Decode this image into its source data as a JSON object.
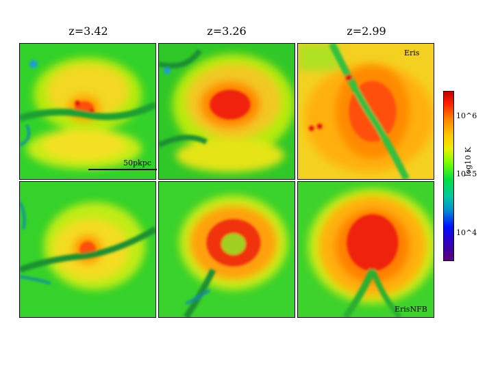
{
  "titles": [
    "z=3.42",
    "z=3.26",
    "z=2.99"
  ],
  "labels": {
    "top_right": "Eris",
    "bottom_right": "ErisNFB",
    "scale": "50pkpc"
  },
  "colorbar": {
    "label": "log10 K",
    "ticks": [
      "10^6",
      "10^5",
      "10^4"
    ]
  },
  "colors": {
    "cold": "#0b6fd0",
    "cool": "#18c030",
    "warm": "#9ee80a",
    "mild": "#f0e010",
    "hot": "#ff8a00",
    "hottest": "#e01010"
  }
}
